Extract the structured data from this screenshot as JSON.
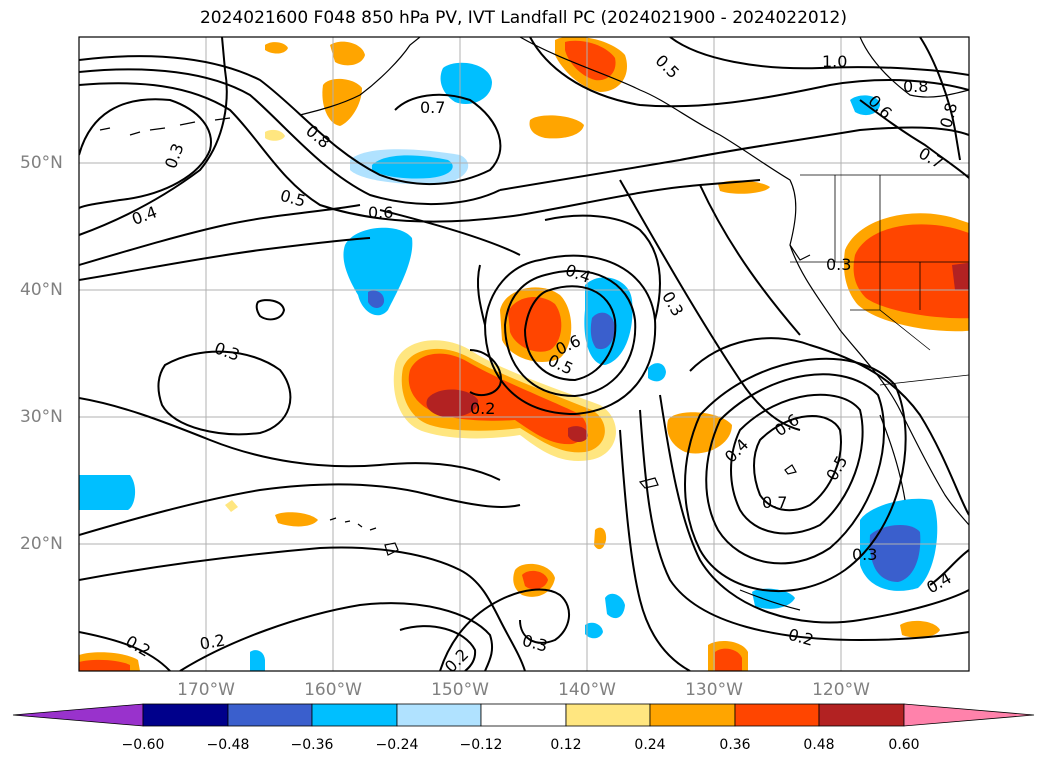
{
  "title": "2024021600 F048 850 hPa PV, IVT Landfall PC (2024021900 - 2024022012)",
  "longitude_labels": [
    "170°W",
    "160°W",
    "150°W",
    "140°W",
    "130°W",
    "120°W"
  ],
  "latitude_labels": [
    "50°N",
    "40°N",
    "30°N",
    "20°N"
  ],
  "colorbar": {
    "ticks": [
      "−0.60",
      "−0.48",
      "−0.36",
      "−0.24",
      "−0.12",
      "0.12",
      "0.24",
      "0.36",
      "0.48",
      "0.60"
    ],
    "colors": [
      "#9932cc",
      "#00008b",
      "#3a5fcd",
      "#00bfff",
      "#b0e2ff",
      "#ffffff",
      "#ffe680",
      "#ffa500",
      "#ff4500",
      "#b22222",
      "#ff82ab"
    ]
  },
  "contour_labels": [
    "1.0",
    "0.8",
    "0.7",
    "0.6",
    "0.5",
    "0.4",
    "0.3",
    "0.2"
  ],
  "colors": {
    "text": "#000000",
    "axis_label": "#808080",
    "grid": "#b0b0b0",
    "contour": "#000000"
  }
}
